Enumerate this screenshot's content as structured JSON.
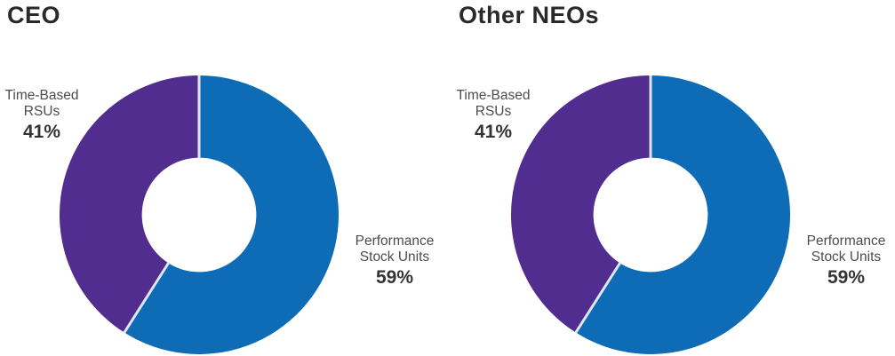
{
  "colors": {
    "performance_blue": "#0d6cb5",
    "time_based_purple": "#512d90",
    "separator": "#dfe5f3",
    "title_text": "#29292b",
    "label_text": "#4c4c4e",
    "pct_text": "#343436"
  },
  "chart_data": [
    {
      "type": "pie",
      "subtype": "donut",
      "title": "CEO",
      "direction": "clockwise",
      "start_angle_deg": 0,
      "inner_radius_ratio": 0.41,
      "legend": "none",
      "slices": [
        {
          "label": "Performance Stock Units",
          "value": 59,
          "color": "#0d6cb5"
        },
        {
          "label": "Time-Based RSUs",
          "value": 41,
          "color": "#512d90"
        }
      ],
      "labels": [
        {
          "lines": [
            "Time-Based",
            "RSUs"
          ],
          "pct": "41%",
          "position": "left"
        },
        {
          "lines": [
            "Performance",
            "Stock Units"
          ],
          "pct": "59%",
          "position": "right"
        }
      ]
    },
    {
      "type": "pie",
      "subtype": "donut",
      "title": "Other NEOs",
      "direction": "clockwise",
      "start_angle_deg": 0,
      "inner_radius_ratio": 0.41,
      "legend": "none",
      "slices": [
        {
          "label": "Performance Stock Units",
          "value": 59,
          "color": "#0d6cb5"
        },
        {
          "label": "Time-Based RSUs",
          "value": 41,
          "color": "#512d90"
        }
      ],
      "labels": [
        {
          "lines": [
            "Time-Based",
            "RSUs"
          ],
          "pct": "41%",
          "position": "left"
        },
        {
          "lines": [
            "Performance",
            "Stock Units"
          ],
          "pct": "59%",
          "position": "right"
        }
      ]
    }
  ]
}
